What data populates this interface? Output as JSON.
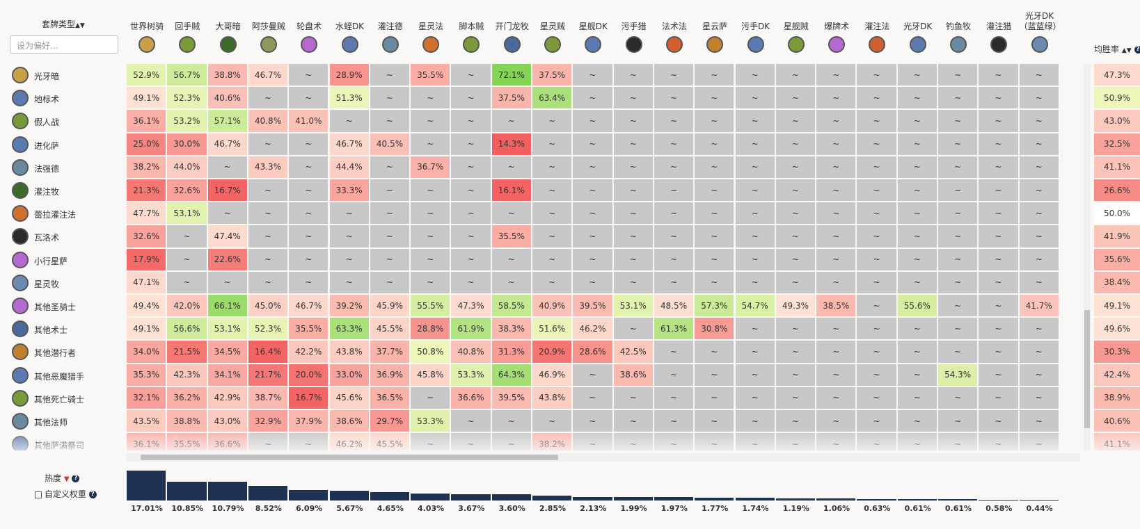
{
  "header": {
    "deck_type_label": "套牌类型",
    "filter_placeholder": "设为偏好...",
    "avg_label": "均胜率",
    "popularity_label": "热度",
    "custom_weight_label": "自定义权重"
  },
  "columns": [
    "世界树骑",
    "回手贼",
    "大哥暗",
    "阿莎曼贼",
    "轮盘术",
    "水蛭DK",
    "灌注德",
    "星灵法",
    "脚本贼",
    "开门龙牧",
    "星灵贼",
    "星舰DK",
    "污手猎",
    "法术法",
    "星云萨",
    "污手DK",
    "星舰贼",
    "爆牌术",
    "灌注法",
    "光牙DK",
    "钓鱼牧",
    "灌注猎",
    "光牙DK（蓝蓝绿）"
  ],
  "popularity": {
    "values": [
      17.01,
      10.85,
      10.79,
      8.52,
      6.09,
      5.67,
      4.65,
      4.03,
      3.67,
      3.6,
      2.85,
      2.13,
      1.99,
      1.97,
      1.77,
      1.74,
      1.19,
      1.06,
      0.63,
      0.61,
      0.61,
      0.58,
      0.44
    ],
    "value_labels": [
      "17.01%",
      "10.85%",
      "10.79%",
      "8.52%",
      "6.09%",
      "5.67%",
      "4.65%",
      "4.03%",
      "3.67%",
      "3.60%",
      "2.85%",
      "2.13%",
      "1.99%",
      "1.97%",
      "1.77%",
      "1.74%",
      "1.19%",
      "1.06%",
      "0.63%",
      "0.61%",
      "0.61%",
      "0.58%",
      "0.44%"
    ]
  },
  "rows": [
    {
      "name": "光牙暗",
      "values": [
        52.9,
        56.7,
        38.8,
        46.7,
        null,
        28.9,
        null,
        35.5,
        null,
        72.1,
        37.5,
        null,
        null,
        null,
        null,
        null,
        null,
        null,
        null,
        null,
        null,
        null,
        null
      ],
      "value_labels": [
        "52.9%",
        "56.7%",
        "38.8%",
        "46.7%",
        "~",
        "28.9%",
        "~",
        "35.5%",
        "~",
        "72.1%",
        "37.5%",
        "~",
        "~",
        "~",
        "~",
        "~",
        "~",
        "~",
        "~",
        "~",
        "~",
        "~",
        "~"
      ],
      "avg": 47.3,
      "avg_label": "47.3%"
    },
    {
      "name": "地标术",
      "values": [
        49.1,
        52.3,
        40.6,
        null,
        null,
        51.3,
        null,
        null,
        null,
        37.5,
        63.4,
        null,
        null,
        null,
        null,
        null,
        null,
        null,
        null,
        null,
        null,
        null,
        null
      ],
      "value_labels": [
        "49.1%",
        "52.3%",
        "40.6%",
        "~",
        "~",
        "51.3%",
        "~",
        "~",
        "~",
        "37.5%",
        "63.4%",
        "~",
        "~",
        "~",
        "~",
        "~",
        "~",
        "~",
        "~",
        "~",
        "~",
        "~",
        "~"
      ],
      "avg": 50.9,
      "avg_label": "50.9%"
    },
    {
      "name": "假人战",
      "values": [
        36.1,
        53.2,
        57.1,
        40.8,
        41.0,
        null,
        null,
        null,
        null,
        null,
        null,
        null,
        null,
        null,
        null,
        null,
        null,
        null,
        null,
        null,
        null,
        null,
        null
      ],
      "value_labels": [
        "36.1%",
        "53.2%",
        "57.1%",
        "40.8%",
        "41.0%",
        "~",
        "~",
        "~",
        "~",
        "~",
        "~",
        "~",
        "~",
        "~",
        "~",
        "~",
        "~",
        "~",
        "~",
        "~",
        "~",
        "~",
        "~"
      ],
      "avg": 43.0,
      "avg_label": "43.0%"
    },
    {
      "name": "进化萨",
      "values": [
        25.0,
        30.0,
        46.7,
        null,
        null,
        46.7,
        40.5,
        null,
        null,
        14.3,
        null,
        null,
        null,
        null,
        null,
        null,
        null,
        null,
        null,
        null,
        null,
        null,
        null
      ],
      "value_labels": [
        "25.0%",
        "30.0%",
        "46.7%",
        "~",
        "~",
        "46.7%",
        "40.5%",
        "~",
        "~",
        "14.3%",
        "~",
        "~",
        "~",
        "~",
        "~",
        "~",
        "~",
        "~",
        "~",
        "~",
        "~",
        "~",
        "~"
      ],
      "avg": 32.5,
      "avg_label": "32.5%"
    },
    {
      "name": "法强德",
      "values": [
        38.2,
        44.0,
        null,
        43.3,
        null,
        44.4,
        null,
        36.7,
        null,
        null,
        null,
        null,
        null,
        null,
        null,
        null,
        null,
        null,
        null,
        null,
        null,
        null,
        null
      ],
      "value_labels": [
        "38.2%",
        "44.0%",
        "~",
        "43.3%",
        "~",
        "44.4%",
        "~",
        "36.7%",
        "~",
        "~",
        "~",
        "~",
        "~",
        "~",
        "~",
        "~",
        "~",
        "~",
        "~",
        "~",
        "~",
        "~",
        "~"
      ],
      "avg": 41.1,
      "avg_label": "41.1%"
    },
    {
      "name": "灌注牧",
      "values": [
        21.3,
        32.6,
        16.7,
        null,
        null,
        33.3,
        null,
        null,
        null,
        16.1,
        null,
        null,
        null,
        null,
        null,
        null,
        null,
        null,
        null,
        null,
        null,
        null,
        null
      ],
      "value_labels": [
        "21.3%",
        "32.6%",
        "16.7%",
        "~",
        "~",
        "33.3%",
        "~",
        "~",
        "~",
        "16.1%",
        "~",
        "~",
        "~",
        "~",
        "~",
        "~",
        "~",
        "~",
        "~",
        "~",
        "~",
        "~",
        "~"
      ],
      "avg": 26.6,
      "avg_label": "26.6%"
    },
    {
      "name": "蕾拉灌注法",
      "values": [
        47.7,
        53.1,
        null,
        null,
        null,
        null,
        null,
        null,
        null,
        null,
        null,
        null,
        null,
        null,
        null,
        null,
        null,
        null,
        null,
        null,
        null,
        null,
        null
      ],
      "value_labels": [
        "47.7%",
        "53.1%",
        "~",
        "~",
        "~",
        "~",
        "~",
        "~",
        "~",
        "~",
        "~",
        "~",
        "~",
        "~",
        "~",
        "~",
        "~",
        "~",
        "~",
        "~",
        "~",
        "~",
        "~"
      ],
      "avg": 50.0,
      "avg_label": "50.0%"
    },
    {
      "name": "瓦洛术",
      "values": [
        32.6,
        null,
        47.4,
        null,
        null,
        null,
        null,
        null,
        null,
        35.5,
        null,
        null,
        null,
        null,
        null,
        null,
        null,
        null,
        null,
        null,
        null,
        null,
        null
      ],
      "value_labels": [
        "32.6%",
        "~",
        "47.4%",
        "~",
        "~",
        "~",
        "~",
        "~",
        "~",
        "35.5%",
        "~",
        "~",
        "~",
        "~",
        "~",
        "~",
        "~",
        "~",
        "~",
        "~",
        "~",
        "~",
        "~"
      ],
      "avg": 41.9,
      "avg_label": "41.9%"
    },
    {
      "name": "小行星萨",
      "values": [
        17.9,
        null,
        22.6,
        null,
        null,
        null,
        null,
        null,
        null,
        null,
        null,
        null,
        null,
        null,
        null,
        null,
        null,
        null,
        null,
        null,
        null,
        null,
        null
      ],
      "value_labels": [
        "17.9%",
        "~",
        "22.6%",
        "~",
        "~",
        "~",
        "~",
        "~",
        "~",
        "~",
        "~",
        "~",
        "~",
        "~",
        "~",
        "~",
        "~",
        "~",
        "~",
        "~",
        "~",
        "~",
        "~"
      ],
      "avg": 35.6,
      "avg_label": "35.6%"
    },
    {
      "name": "星灵牧",
      "values": [
        47.1,
        null,
        null,
        null,
        null,
        null,
        null,
        null,
        null,
        null,
        null,
        null,
        null,
        null,
        null,
        null,
        null,
        null,
        null,
        null,
        null,
        null,
        null
      ],
      "value_labels": [
        "47.1%",
        "~",
        "~",
        "~",
        "~",
        "~",
        "~",
        "~",
        "~",
        "~",
        "~",
        "~",
        "~",
        "~",
        "~",
        "~",
        "~",
        "~",
        "~",
        "~",
        "~",
        "~",
        "~"
      ],
      "avg": 38.4,
      "avg_label": "38.4%"
    },
    {
      "name": "其他圣骑士",
      "values": [
        49.4,
        42.0,
        66.1,
        45.0,
        46.7,
        39.2,
        45.9,
        55.5,
        47.3,
        58.5,
        40.9,
        39.5,
        53.1,
        48.5,
        57.3,
        54.7,
        49.3,
        38.5,
        null,
        55.6,
        null,
        null,
        41.7
      ],
      "value_labels": [
        "49.4%",
        "42.0%",
        "66.1%",
        "45.0%",
        "46.7%",
        "39.2%",
        "45.9%",
        "55.5%",
        "47.3%",
        "58.5%",
        "40.9%",
        "39.5%",
        "53.1%",
        "48.5%",
        "57.3%",
        "54.7%",
        "49.3%",
        "38.5%",
        "~",
        "55.6%",
        "~",
        "~",
        "41.7%"
      ],
      "avg": 49.1,
      "avg_label": "49.1%"
    },
    {
      "name": "其他术士",
      "values": [
        49.1,
        56.6,
        53.1,
        52.3,
        35.5,
        63.3,
        45.5,
        28.8,
        61.9,
        38.3,
        51.6,
        46.2,
        null,
        61.3,
        30.8,
        null,
        null,
        null,
        null,
        null,
        null,
        null,
        null
      ],
      "value_labels": [
        "49.1%",
        "56.6%",
        "53.1%",
        "52.3%",
        "35.5%",
        "63.3%",
        "45.5%",
        "28.8%",
        "61.9%",
        "38.3%",
        "51.6%",
        "46.2%",
        "~",
        "61.3%",
        "30.8%",
        "~",
        "~",
        "~",
        "~",
        "~",
        "~",
        "~",
        "~"
      ],
      "avg": 49.6,
      "avg_label": "49.6%"
    },
    {
      "name": "其他潜行者",
      "values": [
        34.0,
        21.5,
        34.5,
        16.4,
        42.2,
        43.8,
        37.7,
        50.8,
        40.8,
        31.3,
        20.9,
        28.6,
        42.5,
        null,
        null,
        null,
        null,
        null,
        null,
        null,
        null,
        null,
        null
      ],
      "value_labels": [
        "34.0%",
        "21.5%",
        "34.5%",
        "16.4%",
        "42.2%",
        "43.8%",
        "37.7%",
        "50.8%",
        "40.8%",
        "31.3%",
        "20.9%",
        "28.6%",
        "42.5%",
        "~",
        "~",
        "~",
        "~",
        "~",
        "~",
        "~",
        "~",
        "~",
        "~"
      ],
      "avg": 30.3,
      "avg_label": "30.3%"
    },
    {
      "name": "其他恶魔猎手",
      "values": [
        35.3,
        42.3,
        34.1,
        21.7,
        20.0,
        33.0,
        36.9,
        45.8,
        53.3,
        64.3,
        46.9,
        null,
        38.6,
        null,
        null,
        null,
        null,
        null,
        null,
        null,
        54.3,
        null,
        null
      ],
      "value_labels": [
        "35.3%",
        "42.3%",
        "34.1%",
        "21.7%",
        "20.0%",
        "33.0%",
        "36.9%",
        "45.8%",
        "53.3%",
        "64.3%",
        "46.9%",
        "~",
        "38.6%",
        "~",
        "~",
        "~",
        "~",
        "~",
        "~",
        "~",
        "54.3%",
        "~",
        "~"
      ],
      "avg": 42.4,
      "avg_label": "42.4%"
    },
    {
      "name": "其他死亡骑士",
      "values": [
        32.1,
        36.2,
        42.9,
        38.7,
        16.7,
        45.6,
        36.5,
        null,
        36.6,
        39.5,
        43.8,
        null,
        null,
        null,
        null,
        null,
        null,
        null,
        null,
        null,
        null,
        null,
        null
      ],
      "value_labels": [
        "32.1%",
        "36.2%",
        "42.9%",
        "38.7%",
        "16.7%",
        "45.6%",
        "36.5%",
        "~",
        "36.6%",
        "39.5%",
        "43.8%",
        "~",
        "~",
        "~",
        "~",
        "~",
        "~",
        "~",
        "~",
        "~",
        "~",
        "~",
        "~"
      ],
      "avg": 38.9,
      "avg_label": "38.9%"
    },
    {
      "name": "其他法师",
      "values": [
        43.5,
        38.8,
        43.0,
        32.9,
        37.9,
        38.6,
        29.7,
        53.3,
        null,
        null,
        null,
        null,
        null,
        null,
        null,
        null,
        null,
        null,
        null,
        null,
        null,
        null,
        null
      ],
      "value_labels": [
        "43.5%",
        "38.8%",
        "43.0%",
        "32.9%",
        "37.9%",
        "38.6%",
        "29.7%",
        "53.3%",
        "~",
        "~",
        "~",
        "~",
        "~",
        "~",
        "~",
        "~",
        "~",
        "~",
        "~",
        "~",
        "~",
        "~",
        "~"
      ],
      "avg": 40.6,
      "avg_label": "40.6%"
    },
    {
      "name": "其他萨满祭司",
      "values": [
        36.1,
        35.5,
        36.6,
        null,
        null,
        46.2,
        45.5,
        null,
        null,
        null,
        38.2,
        null,
        null,
        null,
        null,
        null,
        null,
        null,
        null,
        null,
        null,
        null,
        null
      ],
      "value_labels": [
        "36.1%",
        "35.5%",
        "36.6%",
        "~",
        "~",
        "46.2%",
        "45.5%",
        "~",
        "~",
        "~",
        "38.2%",
        "~",
        "~",
        "~",
        "~",
        "~",
        "~",
        "~",
        "~",
        "~",
        "~",
        "~",
        "~"
      ],
      "avg": 41.1,
      "avg_label": "41.1%"
    }
  ]
}
